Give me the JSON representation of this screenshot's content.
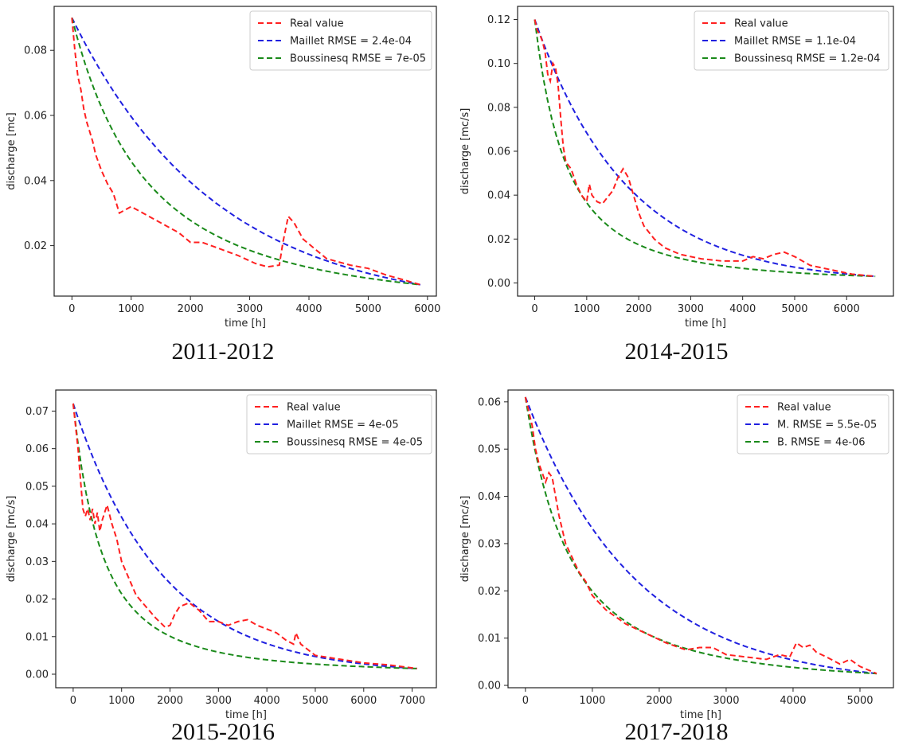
{
  "colors": {
    "real": "#ff2020",
    "maillet": "#2020e0",
    "boussinesq": "#1a8a1a"
  },
  "chart_data": [
    {
      "type": "line",
      "caption": "2011-2012",
      "xlabel": "time [h]",
      "ylabel": "discharge [mc]",
      "xlim": [
        -300,
        6150
      ],
      "ylim": [
        0.0045,
        0.0935
      ],
      "xticks": [
        0,
        1000,
        2000,
        3000,
        4000,
        5000,
        6000
      ],
      "xtick_labels": [
        "0",
        "1000",
        "2000",
        "3000",
        "4000",
        "5000",
        "6000"
      ],
      "yticks": [
        0.02,
        0.04,
        0.06,
        0.08
      ],
      "ytick_labels": [
        "0.02",
        "0.04",
        "0.06",
        "0.08"
      ],
      "legend_position": "top-right",
      "series": [
        {
          "name": "Real value",
          "color": "red",
          "style": "dashed",
          "x": [
            0,
            50,
            100,
            150,
            200,
            250,
            300,
            350,
            400,
            500,
            600,
            700,
            800,
            900,
            1000,
            1200,
            1400,
            1600,
            1800,
            2000,
            2200,
            2500,
            2800,
            3100,
            3300,
            3500,
            3560,
            3650,
            3750,
            3900,
            4100,
            4300,
            4500,
            4700,
            5000,
            5300,
            5600,
            5880
          ],
          "y": [
            0.09,
            0.08,
            0.072,
            0.068,
            0.062,
            0.058,
            0.055,
            0.052,
            0.048,
            0.043,
            0.039,
            0.036,
            0.03,
            0.031,
            0.032,
            0.03,
            0.028,
            0.026,
            0.024,
            0.021,
            0.021,
            0.019,
            0.017,
            0.0145,
            0.0135,
            0.014,
            0.021,
            0.029,
            0.027,
            0.022,
            0.019,
            0.016,
            0.015,
            0.014,
            0.013,
            0.011,
            0.0095,
            0.008
          ]
        },
        {
          "name": "Maillet RMSE = 2.4e-04",
          "color": "blue",
          "style": "dashed",
          "model": "exp",
          "q0": 0.09,
          "qend": 0.008,
          "t0": 0,
          "tend": 5880
        },
        {
          "name": "Boussinesq RMSE = 7e-05",
          "color": "green",
          "style": "dashed",
          "model": "hyp",
          "q0": 0.09,
          "qend": 0.008,
          "t0": 0,
          "tend": 5880
        }
      ]
    },
    {
      "type": "line",
      "caption": "2014-2015",
      "xlabel": "time [h]",
      "ylabel": "discharge [mc/s]",
      "xlim": [
        -330,
        6900
      ],
      "ylim": [
        -0.006,
        0.126
      ],
      "xticks": [
        0,
        1000,
        2000,
        3000,
        4000,
        5000,
        6000
      ],
      "xtick_labels": [
        "0",
        "1000",
        "2000",
        "3000",
        "4000",
        "5000",
        "6000"
      ],
      "yticks": [
        0.0,
        0.02,
        0.04,
        0.06,
        0.08,
        0.1,
        0.12
      ],
      "ytick_labels": [
        "0.00",
        "0.02",
        "0.04",
        "0.06",
        "0.08",
        "0.10",
        "0.12"
      ],
      "legend_position": "top-right",
      "series": [
        {
          "name": "Real value",
          "color": "red",
          "style": "dashed",
          "x": [
            0,
            50,
            100,
            150,
            200,
            250,
            300,
            350,
            400,
            450,
            500,
            550,
            600,
            700,
            800,
            900,
            1000,
            1050,
            1100,
            1200,
            1300,
            1400,
            1500,
            1600,
            1700,
            1800,
            1900,
            2000,
            2100,
            2300,
            2500,
            2800,
            3200,
            3600,
            4000,
            4200,
            4400,
            4600,
            4800,
            5000,
            5300,
            5700,
            6100,
            6550
          ],
          "y": [
            0.12,
            0.115,
            0.113,
            0.11,
            0.105,
            0.095,
            0.092,
            0.1,
            0.098,
            0.09,
            0.075,
            0.062,
            0.055,
            0.052,
            0.045,
            0.04,
            0.037,
            0.045,
            0.04,
            0.037,
            0.036,
            0.039,
            0.042,
            0.048,
            0.052,
            0.048,
            0.04,
            0.032,
            0.026,
            0.02,
            0.016,
            0.013,
            0.011,
            0.01,
            0.01,
            0.012,
            0.011,
            0.013,
            0.014,
            0.012,
            0.008,
            0.006,
            0.004,
            0.003
          ]
        },
        {
          "name": "Maillet RMSE = 1.1e-04",
          "color": "blue",
          "style": "dashed",
          "model": "exp",
          "q0": 0.12,
          "qend": 0.003,
          "t0": 0,
          "tend": 6550
        },
        {
          "name": "Boussinesq RMSE = 1.2e-04",
          "color": "green",
          "style": "dashed",
          "model": "hyp",
          "q0": 0.12,
          "qend": 0.003,
          "t0": 0,
          "tend": 6550
        }
      ]
    },
    {
      "type": "line",
      "caption": "2015-2016",
      "xlabel": "time [h]",
      "ylabel": "discharge [mc/s]",
      "xlim": [
        -360,
        7500
      ],
      "ylim": [
        -0.0036,
        0.0756
      ],
      "xticks": [
        0,
        1000,
        2000,
        3000,
        4000,
        5000,
        6000,
        7000
      ],
      "xtick_labels": [
        "0",
        "1000",
        "2000",
        "3000",
        "4000",
        "5000",
        "6000",
        "7000"
      ],
      "yticks": [
        0.0,
        0.01,
        0.02,
        0.03,
        0.04,
        0.05,
        0.06,
        0.07
      ],
      "ytick_labels": [
        "0.00",
        "0.01",
        "0.02",
        "0.03",
        "0.04",
        "0.05",
        "0.06",
        "0.07"
      ],
      "legend_position": "top-right",
      "series": [
        {
          "name": "Real value",
          "color": "red",
          "style": "dashed",
          "x": [
            0,
            50,
            100,
            150,
            200,
            250,
            300,
            350,
            400,
            450,
            500,
            550,
            600,
            650,
            700,
            800,
            900,
            1000,
            1100,
            1200,
            1300,
            1500,
            1700,
            1900,
            2000,
            2100,
            2200,
            2400,
            2600,
            2800,
            3000,
            3200,
            3400,
            3600,
            3800,
            4000,
            4200,
            4400,
            4550,
            4600,
            4700,
            5000,
            5500,
            6000,
            6500,
            7100
          ],
          "y": [
            0.072,
            0.066,
            0.06,
            0.052,
            0.044,
            0.042,
            0.044,
            0.041,
            0.044,
            0.04,
            0.043,
            0.038,
            0.041,
            0.043,
            0.045,
            0.04,
            0.036,
            0.03,
            0.027,
            0.024,
            0.021,
            0.018,
            0.015,
            0.0125,
            0.013,
            0.016,
            0.018,
            0.019,
            0.017,
            0.014,
            0.014,
            0.013,
            0.014,
            0.0145,
            0.013,
            0.012,
            0.011,
            0.009,
            0.008,
            0.011,
            0.008,
            0.005,
            0.004,
            0.003,
            0.0025,
            0.0015
          ]
        },
        {
          "name": "Maillet RMSE = 4e-05",
          "color": "blue",
          "style": "dashed",
          "model": "exp",
          "q0": 0.072,
          "qend": 0.0015,
          "t0": 0,
          "tend": 7100
        },
        {
          "name": "Boussinesq RMSE = 4e-05",
          "color": "green",
          "style": "dashed",
          "model": "hyp",
          "q0": 0.072,
          "qend": 0.0015,
          "t0": 0,
          "tend": 7100
        }
      ]
    },
    {
      "type": "line",
      "caption": "2017-2018",
      "xlabel": "time [h]",
      "ylabel": "discharge [mc/s]",
      "xlim": [
        -260,
        5500
      ],
      "ylim": [
        -0.0005,
        0.0625
      ],
      "xticks": [
        0,
        1000,
        2000,
        3000,
        4000,
        5000
      ],
      "xtick_labels": [
        "0",
        "1000",
        "2000",
        "3000",
        "4000",
        "5000"
      ],
      "yticks": [
        0.0,
        0.01,
        0.02,
        0.03,
        0.04,
        0.05,
        0.06
      ],
      "ytick_labels": [
        "0.00",
        "0.01",
        "0.02",
        "0.03",
        "0.04",
        "0.05",
        "0.06"
      ],
      "legend_position": "top-right",
      "series": [
        {
          "name": "Real value",
          "color": "red",
          "style": "dashed",
          "x": [
            0,
            50,
            100,
            150,
            200,
            250,
            300,
            350,
            400,
            450,
            500,
            550,
            600,
            700,
            800,
            900,
            1000,
            1200,
            1500,
            1800,
            2100,
            2400,
            2600,
            2800,
            3000,
            3300,
            3600,
            3800,
            3950,
            4050,
            4150,
            4250,
            4350,
            4500,
            4700,
            4850,
            5000,
            5250
          ],
          "y": [
            0.061,
            0.058,
            0.055,
            0.05,
            0.047,
            0.045,
            0.043,
            0.045,
            0.044,
            0.04,
            0.036,
            0.033,
            0.03,
            0.027,
            0.024,
            0.022,
            0.019,
            0.016,
            0.013,
            0.011,
            0.009,
            0.0075,
            0.008,
            0.008,
            0.0065,
            0.006,
            0.0055,
            0.0065,
            0.006,
            0.009,
            0.008,
            0.0085,
            0.007,
            0.006,
            0.0045,
            0.0055,
            0.004,
            0.0025
          ]
        },
        {
          "name": "M. RMSE = 5.5e-05",
          "color": "blue",
          "style": "dashed",
          "model": "exp",
          "q0": 0.061,
          "qend": 0.0025,
          "t0": 0,
          "tend": 5250
        },
        {
          "name": "B. RMSE = 4e-06",
          "color": "green",
          "style": "dashed",
          "model": "hyp",
          "q0": 0.061,
          "qend": 0.0025,
          "t0": 0,
          "tend": 5250
        }
      ]
    }
  ]
}
